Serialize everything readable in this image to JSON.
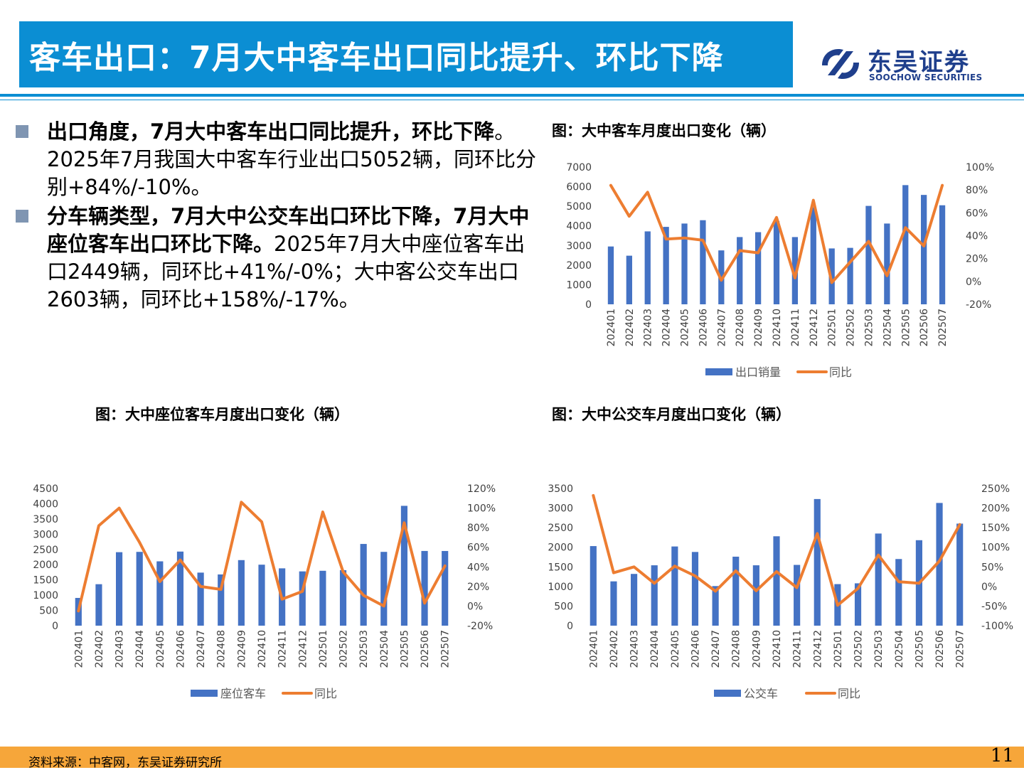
{
  "header": {
    "title": "客车出口：7月大中客车出口同比提升、环比下降",
    "logo_cn": "东吴证券",
    "logo_en": "SOOCHOW SECURITIES"
  },
  "bullets": [
    {
      "bold": "出口角度，7月大中客车出口同比提升，环比下降",
      "text": "。2025年7月我国大中客车行业出口5052辆，同环比分别+84%/-10%。"
    },
    {
      "bold": "分车辆类型，7月大中公交车出口环比下降，7月大中座位客车出口环比下降。",
      "text": "2025年7月大中座位客车出口2449辆，同环比+41%/-0%；大中客公交车出口2603辆，同环比+158%/-17%。"
    }
  ],
  "chart_data": [
    {
      "id": "chart1",
      "type": "bar",
      "title": "图：大中客车月度出口变化（辆）",
      "categories": [
        "202401",
        "202402",
        "202403",
        "202404",
        "202405",
        "202406",
        "202407",
        "202408",
        "202409",
        "202410",
        "202411",
        "202412",
        "202501",
        "202502",
        "202503",
        "202504",
        "202505",
        "202506",
        "202507"
      ],
      "series": [
        {
          "name": "出口销量",
          "type": "bar",
          "axis": "left",
          "color": "#4472c4",
          "values": [
            2950,
            2480,
            3720,
            3950,
            4120,
            4290,
            2750,
            3430,
            3680,
            4250,
            3430,
            4950,
            2850,
            2880,
            5020,
            4120,
            6080,
            5580,
            5052
          ]
        },
        {
          "name": "同比",
          "type": "line",
          "axis": "right",
          "color": "#ed7d31",
          "values": [
            84,
            57,
            78,
            37,
            38,
            36,
            1,
            27,
            25,
            56,
            3,
            71,
            -1,
            17,
            35,
            5,
            47,
            31,
            84
          ]
        }
      ],
      "ylim_left": [
        0,
        7000
      ],
      "yticks_left": [
        0,
        1000,
        2000,
        3000,
        4000,
        5000,
        6000,
        7000
      ],
      "ylim_right": [
        -20,
        100
      ],
      "yticks_right": [
        "-20%",
        "0%",
        "20%",
        "40%",
        "60%",
        "80%",
        "100%"
      ],
      "legend": "bottom"
    },
    {
      "id": "chart2",
      "type": "bar",
      "title": "图：大中座位客车月度出口变化（辆）",
      "categories": [
        "202401",
        "202402",
        "202403",
        "202404",
        "202405",
        "202406",
        "202407",
        "202408",
        "202409",
        "202410",
        "202411",
        "202412",
        "202501",
        "202502",
        "202503",
        "202504",
        "202505",
        "202506",
        "202507"
      ],
      "series": [
        {
          "name": "座位客车",
          "type": "bar",
          "axis": "left",
          "color": "#4472c4",
          "values": [
            910,
            1360,
            2410,
            2420,
            2110,
            2430,
            1740,
            1680,
            2150,
            2000,
            1880,
            1780,
            1800,
            1820,
            2680,
            2420,
            3930,
            2450,
            2449
          ]
        },
        {
          "name": "同比",
          "type": "line",
          "axis": "right",
          "color": "#ed7d31",
          "values": [
            -5,
            82,
            100,
            65,
            25,
            47,
            20,
            17,
            106,
            86,
            7,
            15,
            96,
            35,
            11,
            0,
            85,
            3,
            41
          ]
        }
      ],
      "ylim_left": [
        0,
        4500
      ],
      "yticks_left": [
        0,
        500,
        1000,
        1500,
        2000,
        2500,
        3000,
        3500,
        4000,
        4500
      ],
      "ylim_right": [
        -20,
        120
      ],
      "yticks_right": [
        "-20%",
        "0%",
        "20%",
        "40%",
        "60%",
        "80%",
        "100%",
        "120%"
      ],
      "legend": "bottom"
    },
    {
      "id": "chart3",
      "type": "bar",
      "title": "图：大中公交车月度出口变化（辆）",
      "categories": [
        "202401",
        "202402",
        "202403",
        "202404",
        "202405",
        "202406",
        "202407",
        "202408",
        "202409",
        "202410",
        "202411",
        "202412",
        "202501",
        "202502",
        "202503",
        "202504",
        "202505",
        "202506",
        "202507"
      ],
      "series": [
        {
          "name": "公交车",
          "type": "bar",
          "axis": "left",
          "color": "#4472c4",
          "values": [
            2030,
            1130,
            1320,
            1540,
            2020,
            1880,
            1010,
            1760,
            1540,
            2280,
            1550,
            3230,
            1060,
            1080,
            2350,
            1700,
            2180,
            3130,
            2603
          ]
        },
        {
          "name": "同比",
          "type": "line",
          "axis": "right",
          "color": "#ed7d31",
          "values": [
            232,
            35,
            50,
            8,
            52,
            27,
            -12,
            40,
            -11,
            38,
            -3,
            135,
            -48,
            -5,
            80,
            12,
            8,
            65,
            158
          ]
        }
      ],
      "ylim_left": [
        0,
        3500
      ],
      "yticks_left": [
        0,
        500,
        1000,
        1500,
        2000,
        2500,
        3000,
        3500
      ],
      "ylim_right": [
        -100,
        250
      ],
      "yticks_right": [
        "-100%",
        "-50%",
        "0%",
        "50%",
        "100%",
        "150%",
        "200%",
        "250%"
      ],
      "legend": "bottom"
    }
  ],
  "footer": {
    "source": "资料来源：中客网，东吴证券研究所",
    "page": "11"
  }
}
